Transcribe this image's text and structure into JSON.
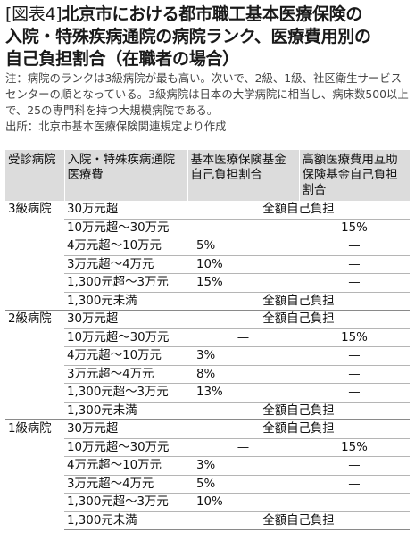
{
  "figure": {
    "tag": "[図表4]",
    "title_line1": "北京市における都市職工基本医療保険の",
    "title_line2": "入院・特殊疾病通院の病院ランク、医療費用別の",
    "title_line3": "自己負担割合（在職者の場合）",
    "note": "注：病院のランクは3級病院が最も高い。次いで、2級、1級、社区衛生サービスセンターの順となっている。3級病院は日本の大学病院に相当し、病床数500以上で、25の専門科を持つ大規模病院である。",
    "source": "出所：北京市基本医療保険関連規定より作成"
  },
  "table": {
    "headers": [
      "受診病院",
      "入院・特殊疾病通院医療費",
      "基本医療保険基金自己負担割合",
      "高額医療費用互助保険基金自己負担割合"
    ],
    "groups": [
      {
        "hospital": "3級病院",
        "rows": [
          {
            "cost": "30万元超",
            "span": "全額自己負担"
          },
          {
            "cost": "10万元超～30万元",
            "basic": "—",
            "mutual": "15%"
          },
          {
            "cost": "4万元超～10万元",
            "basic": "5%",
            "mutual": "—"
          },
          {
            "cost": "3万元超～4万元",
            "basic": "10%",
            "mutual": "—"
          },
          {
            "cost": "1,300元超～3万元",
            "basic": "15%",
            "mutual": "—"
          },
          {
            "cost": "1,300元未満",
            "span": "全額自己負担"
          }
        ]
      },
      {
        "hospital": "2級病院",
        "rows": [
          {
            "cost": "30万元超",
            "span": "全額自己負担"
          },
          {
            "cost": "10万元超～30万元",
            "basic": "—",
            "mutual": "15%"
          },
          {
            "cost": "4万元超～10万元",
            "basic": "3%",
            "mutual": "—"
          },
          {
            "cost": "3万元超～4万元",
            "basic": "8%",
            "mutual": "—"
          },
          {
            "cost": "1,300元超～3万元",
            "basic": "13%",
            "mutual": "—"
          },
          {
            "cost": "1,300元未満",
            "span": "全額自己負担"
          }
        ]
      },
      {
        "hospital": "1級病院",
        "rows": [
          {
            "cost": "30万元超",
            "span": "全額自己負担"
          },
          {
            "cost": "10万元超～30万元",
            "basic": "—",
            "mutual": "15%"
          },
          {
            "cost": "4万元超～10万元",
            "basic": "3%",
            "mutual": "—"
          },
          {
            "cost": "3万元超～4万元",
            "basic": "5%",
            "mutual": "—"
          },
          {
            "cost": "1,300元超～3万元",
            "basic": "10%",
            "mutual": "—"
          },
          {
            "cost": "1,300元未満",
            "span": "全額自己負担"
          }
        ]
      }
    ]
  }
}
